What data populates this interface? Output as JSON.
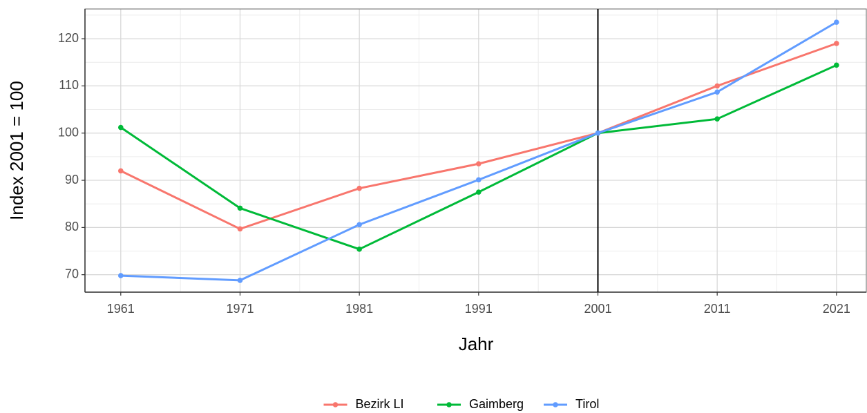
{
  "chart_data": {
    "type": "line",
    "x_label": "Jahr",
    "y_label": "Index 2001 = 100",
    "x": [
      1961,
      1971,
      1981,
      1991,
      2001,
      2011,
      2021
    ],
    "series": [
      {
        "name": "Bezirk LI",
        "color": "#F8766D",
        "values": [
          92,
          79.7,
          88.3,
          93.5,
          100,
          110,
          119
        ]
      },
      {
        "name": "Gaimberg",
        "color": "#00BA38",
        "values": [
          101.2,
          84.1,
          75.4,
          87.5,
          100,
          103,
          114.4
        ]
      },
      {
        "name": "Tirol",
        "color": "#619CFF",
        "values": [
          69.8,
          68.8,
          80.6,
          90.1,
          100,
          108.7,
          123.5
        ]
      }
    ],
    "xlim": [
      1958,
      2023.5
    ],
    "xticks": [
      1961,
      1971,
      1981,
      1991,
      2001,
      2011,
      2021
    ],
    "ylim": [
      66.3,
      126.3
    ],
    "yticks": [
      70,
      80,
      90,
      100,
      110,
      120
    ],
    "vline": 2001,
    "grid": true,
    "legend": "bottom"
  }
}
